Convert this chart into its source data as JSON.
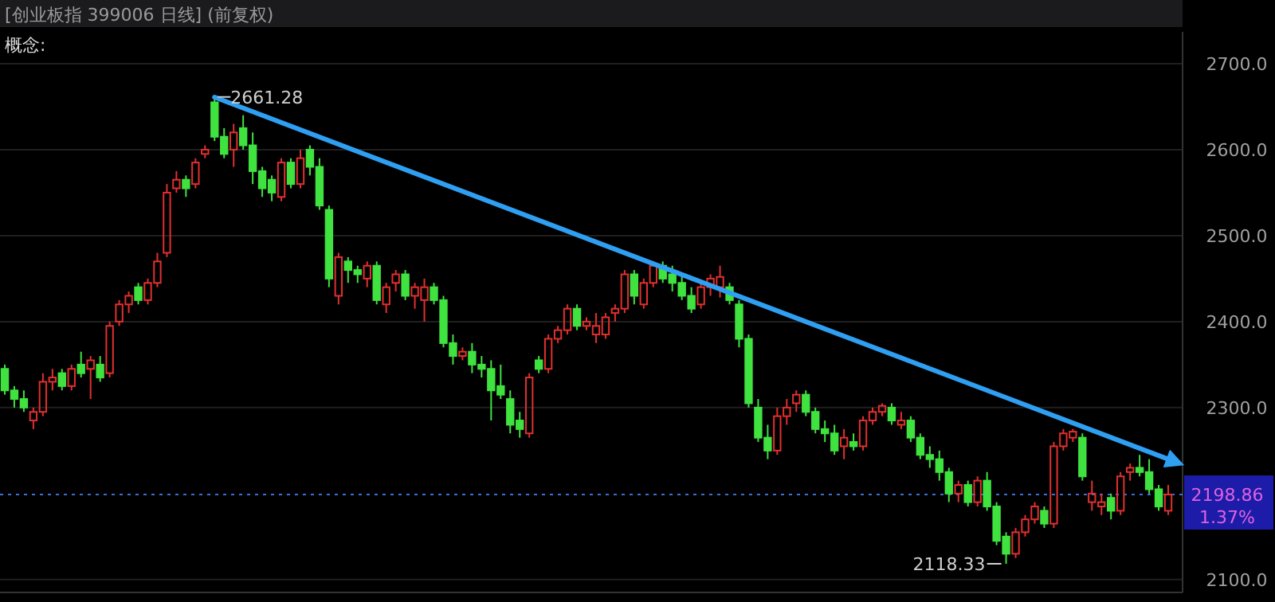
{
  "chart_data": {
    "type": "candlestick",
    "title": "[创业板指 399006 日线] (前复权)",
    "subtitle": "概念:",
    "categories": [
      null,
      null,
      null,
      null,
      null,
      null,
      null,
      null,
      null,
      null,
      null,
      null,
      null,
      null,
      null,
      null,
      null,
      null,
      null,
      null,
      null,
      null,
      null,
      null,
      null,
      null,
      null,
      null,
      null,
      null,
      null,
      null,
      null,
      null,
      null,
      null,
      null,
      null,
      null,
      null,
      null,
      null,
      null,
      null,
      null,
      null,
      null,
      null,
      null,
      null,
      null,
      null,
      null,
      null,
      null,
      null,
      null,
      null,
      null,
      null,
      null,
      null,
      null,
      null,
      null,
      null,
      null,
      null,
      null,
      null,
      null,
      null,
      null,
      null,
      null,
      null,
      null,
      null,
      null,
      null,
      null,
      null,
      null,
      null,
      null,
      null,
      null,
      null,
      null,
      null,
      null,
      null,
      null,
      null,
      null,
      null,
      null,
      null,
      null,
      null,
      null,
      null,
      null,
      null,
      null,
      null,
      null,
      null,
      null,
      null,
      null,
      null,
      null,
      null,
      null,
      null,
      null,
      null,
      null,
      null,
      null,
      null,
      null
    ],
    "ohlc": [
      [
        2345,
        2350,
        2315,
        2320
      ],
      [
        2320,
        2325,
        2300,
        2310
      ],
      [
        2310,
        2320,
        2295,
        2300
      ],
      [
        2285,
        2300,
        2275,
        2295
      ],
      [
        2295,
        2340,
        2290,
        2330
      ],
      [
        2330,
        2345,
        2320,
        2335
      ],
      [
        2340,
        2345,
        2320,
        2325
      ],
      [
        2325,
        2350,
        2320,
        2345
      ],
      [
        2350,
        2365,
        2335,
        2340
      ],
      [
        2345,
        2360,
        2310,
        2355
      ],
      [
        2350,
        2360,
        2330,
        2335
      ],
      [
        2340,
        2400,
        2335,
        2395
      ],
      [
        2400,
        2425,
        2395,
        2420
      ],
      [
        2420,
        2435,
        2410,
        2430
      ],
      [
        2440,
        2445,
        2420,
        2425
      ],
      [
        2425,
        2450,
        2420,
        2445
      ],
      [
        2445,
        2480,
        2440,
        2470
      ],
      [
        2480,
        2560,
        2475,
        2550
      ],
      [
        2555,
        2575,
        2550,
        2565
      ],
      [
        2565,
        2570,
        2545,
        2555
      ],
      [
        2560,
        2590,
        2555,
        2585
      ],
      [
        2595,
        2605,
        2590,
        2600
      ],
      [
        2655,
        2661.28,
        2610,
        2615
      ],
      [
        2615,
        2625,
        2590,
        2595
      ],
      [
        2600,
        2630,
        2580,
        2620
      ],
      [
        2625,
        2640,
        2600,
        2605
      ],
      [
        2605,
        2620,
        2560,
        2575
      ],
      [
        2575,
        2580,
        2545,
        2555
      ],
      [
        2565,
        2570,
        2540,
        2550
      ],
      [
        2545,
        2590,
        2540,
        2585
      ],
      [
        2585,
        2590,
        2555,
        2560
      ],
      [
        2560,
        2600,
        2555,
        2590
      ],
      [
        2600,
        2605,
        2570,
        2580
      ],
      [
        2580,
        2590,
        2530,
        2535
      ],
      [
        2530,
        2535,
        2440,
        2450
      ],
      [
        2430,
        2480,
        2420,
        2475
      ],
      [
        2470,
        2475,
        2445,
        2460
      ],
      [
        2460,
        2465,
        2445,
        2455
      ],
      [
        2450,
        2470,
        2440,
        2465
      ],
      [
        2465,
        2470,
        2420,
        2425
      ],
      [
        2420,
        2445,
        2410,
        2440
      ],
      [
        2445,
        2460,
        2435,
        2455
      ],
      [
        2455,
        2460,
        2425,
        2430
      ],
      [
        2430,
        2445,
        2415,
        2440
      ],
      [
        2425,
        2450,
        2400,
        2440
      ],
      [
        2440,
        2445,
        2420,
        2425
      ],
      [
        2425,
        2430,
        2370,
        2375
      ],
      [
        2375,
        2385,
        2350,
        2360
      ],
      [
        2360,
        2370,
        2355,
        2365
      ],
      [
        2365,
        2375,
        2340,
        2350
      ],
      [
        2350,
        2360,
        2335,
        2345
      ],
      [
        2345,
        2355,
        2285,
        2320
      ],
      [
        2325,
        2350,
        2310,
        2315
      ],
      [
        2310,
        2320,
        2270,
        2280
      ],
      [
        2285,
        2295,
        2265,
        2275
      ],
      [
        2270,
        2340,
        2265,
        2335
      ],
      [
        2355,
        2360,
        2340,
        2345
      ],
      [
        2345,
        2385,
        2340,
        2380
      ],
      [
        2380,
        2395,
        2375,
        2390
      ],
      [
        2390,
        2420,
        2385,
        2415
      ],
      [
        2415,
        2420,
        2390,
        2395
      ],
      [
        2395,
        2405,
        2390,
        2400
      ],
      [
        2385,
        2410,
        2375,
        2395
      ],
      [
        2385,
        2410,
        2380,
        2405
      ],
      [
        2410,
        2420,
        2400,
        2415
      ],
      [
        2415,
        2460,
        2410,
        2455
      ],
      [
        2455,
        2460,
        2420,
        2430
      ],
      [
        2420,
        2450,
        2415,
        2445
      ],
      [
        2445,
        2470,
        2440,
        2465
      ],
      [
        2465,
        2470,
        2445,
        2450
      ],
      [
        2455,
        2465,
        2435,
        2445
      ],
      [
        2445,
        2455,
        2425,
        2430
      ],
      [
        2430,
        2440,
        2410,
        2415
      ],
      [
        2420,
        2445,
        2415,
        2440
      ],
      [
        2440,
        2455,
        2430,
        2450
      ],
      [
        2440,
        2465,
        2428,
        2452
      ],
      [
        2440,
        2445,
        2420,
        2425
      ],
      [
        2420,
        2425,
        2370,
        2380
      ],
      [
        2380,
        2385,
        2300,
        2305
      ],
      [
        2300,
        2310,
        2260,
        2265
      ],
      [
        2265,
        2280,
        2240,
        2250
      ],
      [
        2250,
        2300,
        2245,
        2290
      ],
      [
        2290,
        2310,
        2280,
        2300
      ],
      [
        2305,
        2320,
        2295,
        2315
      ],
      [
        2315,
        2320,
        2290,
        2295
      ],
      [
        2295,
        2300,
        2270,
        2275
      ],
      [
        2275,
        2285,
        2260,
        2270
      ],
      [
        2270,
        2280,
        2245,
        2250
      ],
      [
        2255,
        2275,
        2240,
        2265
      ],
      [
        2260,
        2270,
        2250,
        2255
      ],
      [
        2255,
        2290,
        2250,
        2285
      ],
      [
        2285,
        2300,
        2280,
        2295
      ],
      [
        2295,
        2305,
        2290,
        2302
      ],
      [
        2300,
        2305,
        2280,
        2285
      ],
      [
        2280,
        2295,
        2275,
        2285
      ],
      [
        2285,
        2290,
        2260,
        2265
      ],
      [
        2265,
        2270,
        2240,
        2245
      ],
      [
        2245,
        2255,
        2230,
        2240
      ],
      [
        2240,
        2250,
        2215,
        2225
      ],
      [
        2225,
        2230,
        2190,
        2200
      ],
      [
        2200,
        2215,
        2190,
        2210
      ],
      [
        2210,
        2215,
        2185,
        2190
      ],
      [
        2190,
        2220,
        2185,
        2215
      ],
      [
        2215,
        2225,
        2180,
        2185
      ],
      [
        2185,
        2190,
        2140,
        2145
      ],
      [
        2150,
        2155,
        2118.33,
        2130
      ],
      [
        2130,
        2160,
        2125,
        2155
      ],
      [
        2155,
        2175,
        2150,
        2170
      ],
      [
        2170,
        2190,
        2165,
        2185
      ],
      [
        2180,
        2185,
        2160,
        2165
      ],
      [
        2165,
        2260,
        2160,
        2255
      ],
      [
        2255,
        2275,
        2250,
        2270
      ],
      [
        2265,
        2275,
        2260,
        2272
      ],
      [
        2265,
        2270,
        2215,
        2220
      ],
      [
        2190,
        2215,
        2180,
        2200
      ],
      [
        2185,
        2200,
        2175,
        2190
      ],
      [
        2195,
        2200,
        2170,
        2180
      ],
      [
        2180,
        2225,
        2175,
        2220
      ],
      [
        2225,
        2235,
        2215,
        2230
      ],
      [
        2230,
        2245,
        2220,
        2225
      ],
      [
        2225,
        2240,
        2200,
        2205
      ],
      [
        2205,
        2210,
        2180,
        2185
      ],
      [
        2180,
        2210,
        2175,
        2198.86
      ]
    ],
    "series": [
      {
        "type": "line",
        "color": "#2f9ff2",
        "values": [
          null,
          null,
          null,
          null,
          null,
          null,
          null,
          null,
          null,
          null,
          null,
          null,
          null,
          null,
          null,
          null,
          null,
          null,
          null,
          null,
          null,
          null,
          2661,
          null,
          null,
          null,
          null,
          null,
          null,
          null,
          null,
          null,
          null,
          null,
          null,
          null,
          null,
          null,
          null,
          null,
          null,
          null,
          null,
          null,
          null,
          null,
          null,
          null,
          null,
          null,
          null,
          null,
          null,
          null,
          null,
          null,
          null,
          null,
          null,
          null,
          null,
          null,
          null,
          null,
          null,
          null,
          null,
          null,
          null,
          null,
          null,
          null,
          null,
          null,
          null,
          null,
          null,
          null,
          null,
          null,
          null,
          null,
          null,
          null,
          null,
          null,
          null,
          null,
          null,
          null,
          null,
          null,
          null,
          null,
          null,
          null,
          null,
          null,
          null,
          null,
          null,
          null,
          null,
          null,
          null,
          null,
          null,
          null,
          null,
          null,
          null,
          null,
          null,
          null,
          null,
          null,
          null,
          null,
          null,
          null,
          null,
          null,
          2240
        ]
      }
    ],
    "ylim": [
      2085,
      2737
    ],
    "yticks": [
      {
        "value": 2100,
        "label": "2100.0"
      },
      {
        "value": 2300,
        "label": "2300.0"
      },
      {
        "value": 2400,
        "label": "2400.0"
      },
      {
        "value": 2500,
        "label": "2500.0"
      },
      {
        "value": 2600,
        "label": "2600.0"
      },
      {
        "value": 2700,
        "label": "2700.0"
      }
    ],
    "grid": "y",
    "ref_lines": [
      {
        "axis": "y",
        "value": 2198.86,
        "label": "2198.86",
        "color": "#3a6fd8",
        "line_style": "dotted"
      }
    ],
    "annotations": [
      "2661.28",
      "2118.33",
      "1.37%"
    ]
  }
}
